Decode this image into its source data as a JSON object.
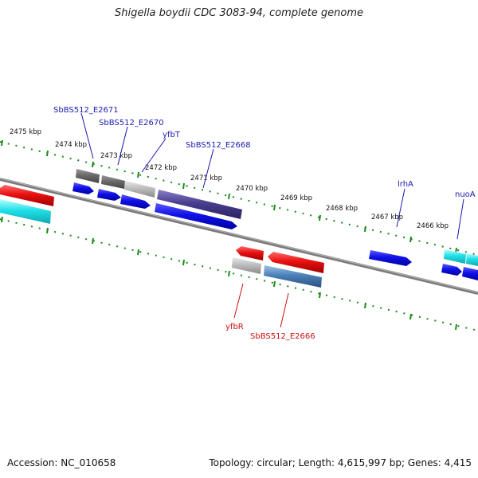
{
  "title": "Shigella boydii CDC 3083-94, complete genome",
  "footer": {
    "accession": "Accession: NC_010658",
    "summary": "Topology: circular; Length: 4,615,997 bp; Genes: 4,415"
  },
  "ticks": [
    "2475 kbp",
    "2474 kbp",
    "2473 kbp",
    "2472 kbp",
    "2471 kbp",
    "2470 kbp",
    "2469 kbp",
    "2468 kbp",
    "2467 kbp",
    "2466 kbp"
  ],
  "gene_labels": {
    "sbbs512_e2671": "SbBS512_E2671",
    "sbbs512_e2670": "SbBS512_E2670",
    "yfbt": "yfbT",
    "sbbs512_e2668": "SbBS512_E2668",
    "lrha": "lrhA",
    "nuoa": "nuoA",
    "yfbr": "yfbR",
    "sbbs512_e2666": "SbBS512_E2666"
  },
  "colors": {
    "backbone": "#7a7a7a",
    "tick_green": "#1a8a1a",
    "forward_cds": "#1010e0",
    "reverse_cds": "#e01010",
    "cyan_feature": "#20d8e0",
    "gray_feature": "#808080",
    "purple_feature": "#4a3f8f",
    "steelblue_feature": "#4a80b8",
    "label_blue": "#1a1ab0",
    "label_red": "#c81010"
  }
}
